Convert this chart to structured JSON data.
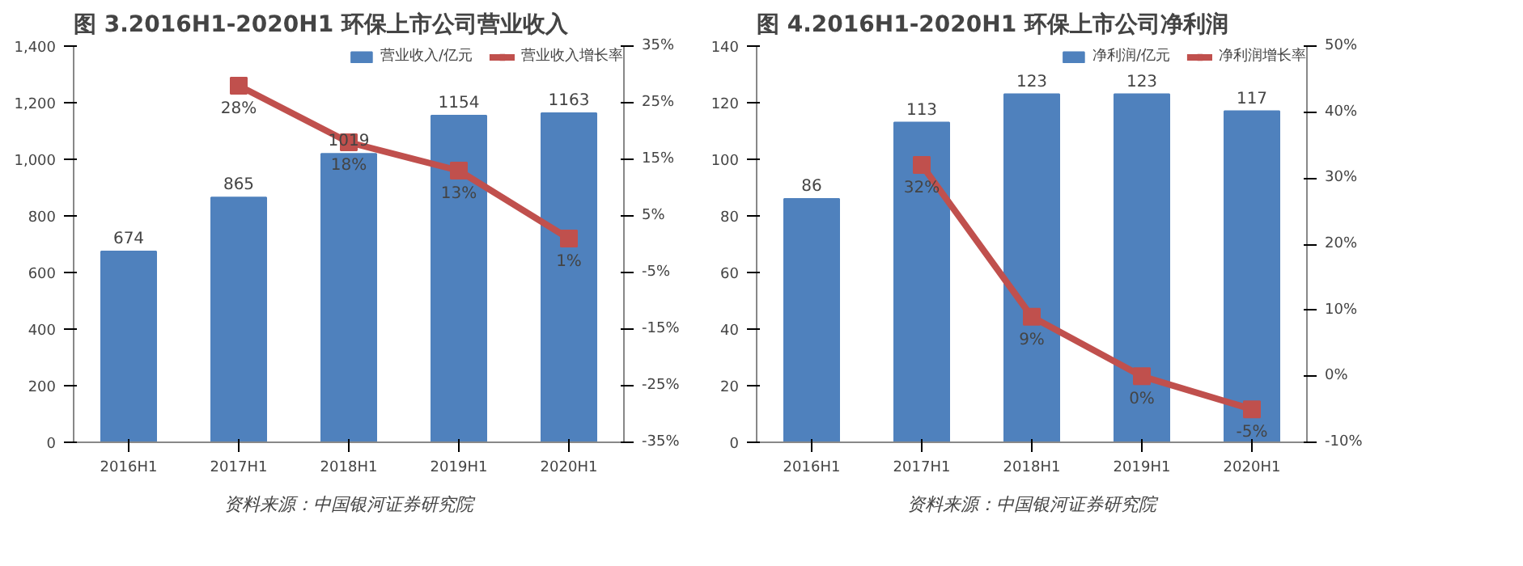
{
  "chart_data": [
    {
      "type": "bar",
      "title": "图 3.2016H1-2020H1 环保上市公司营业收入",
      "categories": [
        "2016H1",
        "2017H1",
        "2018H1",
        "2019H1",
        "2020H1"
      ],
      "series": [
        {
          "name": "营业收入/亿元",
          "color": "#4f81bd",
          "values": [
            674,
            865,
            1019,
            1154,
            1163
          ],
          "value_labels": [
            "674",
            "865",
            "1019",
            "1154",
            "1163"
          ]
        },
        {
          "name": "营业收入增长率",
          "type": "line",
          "axis": "y2",
          "color": "#c0504d",
          "marker": "square",
          "values": [
            null,
            28,
            18,
            13,
            1
          ],
          "value_labels": [
            null,
            "28%",
            "18%",
            "13%",
            "1%"
          ]
        }
      ],
      "ylim": [
        0,
        1400
      ],
      "yticks": [
        0,
        {
          "value": 200,
          "label": "200"
        },
        {
          "value": 400,
          "label": "400"
        },
        {
          "value": 600,
          "label": "600"
        },
        {
          "value": 800,
          "label": "800"
        },
        {
          "value": 1000,
          "label": "1,000"
        },
        {
          "value": 1200,
          "label": "1,200"
        },
        {
          "value": 1400,
          "label": "1,400"
        }
      ],
      "y2lim": [
        -35,
        35
      ],
      "y2ticks": [
        {
          "value": -35,
          "label": "-35%"
        },
        {
          "value": -25,
          "label": "-25%"
        },
        {
          "value": -15,
          "label": "-15%"
        },
        {
          "value": -5,
          "label": "-5%"
        },
        {
          "value": 5,
          "label": "5%"
        },
        {
          "value": 15,
          "label": "15%"
        },
        {
          "value": 25,
          "label": "25%"
        },
        {
          "value": 35,
          "label": "35%"
        }
      ],
      "legend": "top",
      "grid": false,
      "annotations": [
        "资料来源：中国银河证券研究院"
      ]
    },
    {
      "type": "bar",
      "title": "图 4.2016H1-2020H1 环保上市公司净利润",
      "categories": [
        "2016H1",
        "2017H1",
        "2018H1",
        "2019H1",
        "2020H1"
      ],
      "series": [
        {
          "name": "净利润/亿元",
          "color": "#4f81bd",
          "values": [
            86,
            113,
            123,
            123,
            117
          ],
          "value_labels": [
            "86",
            "113",
            "123",
            "123",
            "117"
          ]
        },
        {
          "name": "净利润增长率",
          "type": "line",
          "axis": "y2",
          "color": "#c0504d",
          "marker": "square",
          "values": [
            null,
            32,
            9,
            0,
            -5
          ],
          "value_labels": [
            null,
            "32%",
            "9%",
            "0%",
            "-5%"
          ]
        }
      ],
      "ylim": [
        0,
        140
      ],
      "yticks": [
        0,
        20,
        40,
        60,
        80,
        100,
        120,
        140
      ],
      "y2lim": [
        -10,
        50
      ],
      "y2ticks": [
        {
          "value": -10,
          "label": "-10%"
        },
        {
          "value": 0,
          "label": "0%"
        },
        {
          "value": 10,
          "label": "10%"
        },
        {
          "value": 20,
          "label": "20%"
        },
        {
          "value": 30,
          "label": "30%"
        },
        {
          "value": 40,
          "label": "40%"
        },
        {
          "value": 50,
          "label": "50%"
        }
      ],
      "legend": "top",
      "grid": false,
      "annotations": [
        "资料来源：中国银河证券研究院"
      ]
    }
  ]
}
